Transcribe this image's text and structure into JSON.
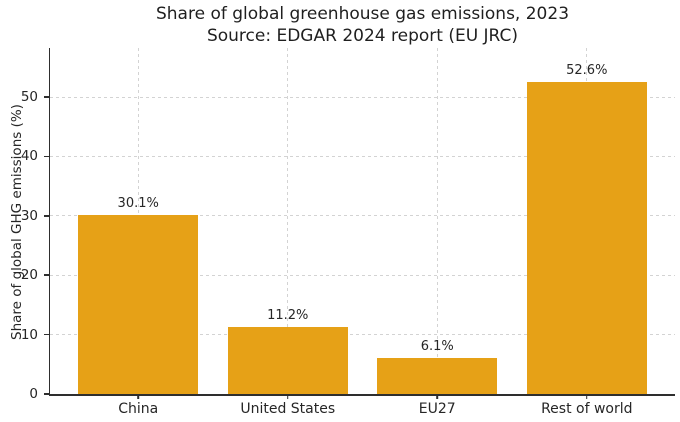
{
  "chart_data": {
    "type": "bar",
    "title": "Share of global greenhouse gas emissions, 2023",
    "subtitle": "Source: EDGAR 2024 report (EU JRC)",
    "ylabel": "Share of global GHG emissions (%)",
    "xlabel": "",
    "categories": [
      "China",
      "United States",
      "EU27",
      "Rest of world"
    ],
    "values": [
      30.1,
      11.2,
      6.1,
      52.6
    ],
    "value_labels": [
      "30.1%",
      "11.2%",
      "6.1%",
      "52.6%"
    ],
    "yticks": [
      0,
      10,
      20,
      30,
      40,
      50
    ],
    "ylim": [
      0,
      58.25
    ],
    "grid": {
      "horizontal": true,
      "vertical": true,
      "style": "dashed",
      "color": "#d3d3d3"
    },
    "legend": "none",
    "colors": {
      "bar": "#E6A117",
      "axis": "#2e2e2e",
      "text": "#262626",
      "grid": "#d3d3d3",
      "background": "#ffffff"
    }
  }
}
